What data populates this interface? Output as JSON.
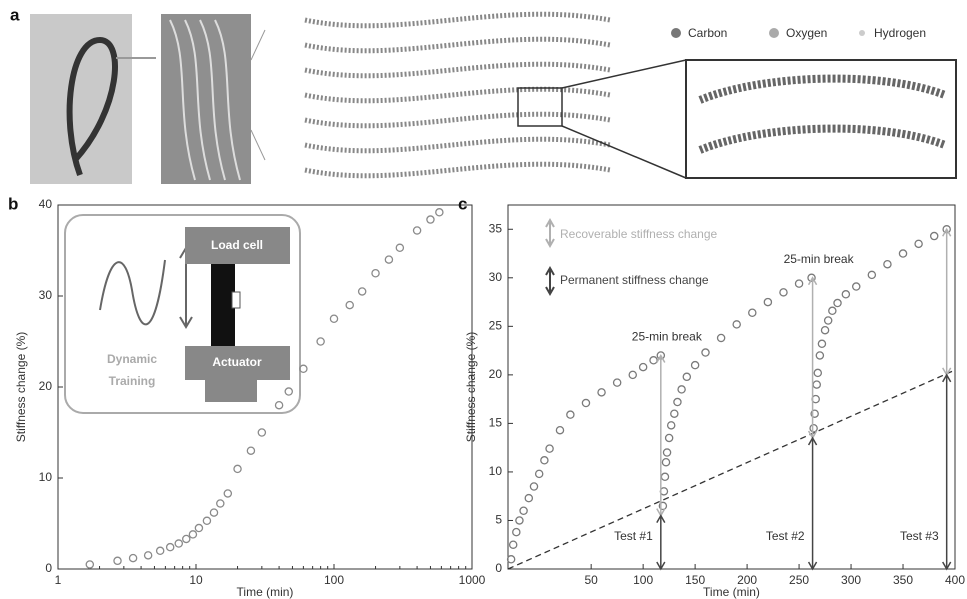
{
  "panel_a": {
    "label": "a",
    "legend": [
      "Carbon",
      "Oxygen",
      "Hydrogen"
    ]
  },
  "chart_data": [
    {
      "type": "scatter",
      "panel_label": "b",
      "x_label": "Time (min)",
      "y_label": "Stiffness change (%)",
      "x_scale": "log",
      "xlim": [
        1,
        1000
      ],
      "xticks": [
        1,
        10,
        100,
        1000
      ],
      "ylim": [
        0,
        40
      ],
      "yticks": [
        0,
        10,
        20,
        30,
        40
      ],
      "color": "#8a8a8a",
      "x": [
        1.7,
        2.7,
        3.5,
        4.5,
        5.5,
        6.5,
        7.5,
        8.5,
        9.5,
        10.5,
        12,
        13.5,
        15,
        17,
        20,
        25,
        30,
        40,
        47,
        60,
        80,
        100,
        130,
        160,
        200,
        250,
        300,
        400,
        500,
        580
      ],
      "values": [
        0.5,
        0.9,
        1.2,
        1.5,
        2.0,
        2.4,
        2.8,
        3.3,
        3.8,
        4.5,
        5.3,
        6.2,
        7.2,
        8.3,
        11,
        13,
        15,
        18,
        19.5,
        22,
        25,
        27.5,
        29,
        30.5,
        32.5,
        34,
        35.3,
        37.2,
        38.4,
        39.2
      ],
      "inset": {
        "top": "Load cell",
        "bottom": "Actuator",
        "caption": [
          "Dynamic",
          "Training"
        ]
      }
    },
    {
      "type": "scatter",
      "panel_label": "c",
      "x_label": "Time (min)",
      "y_label": "Stiffness change (%)",
      "xlim": [
        -30,
        400
      ],
      "xticks": [
        50,
        100,
        150,
        200,
        250,
        300,
        350,
        400
      ],
      "ylim": [
        0,
        37.5
      ],
      "yticks": [
        0,
        5,
        10,
        15,
        20,
        25,
        30,
        35
      ],
      "series": [
        {
          "color": "#7a7a7a",
          "x": [
            -27,
            -25,
            -22,
            -19,
            -15,
            -10,
            -5,
            0,
            5,
            10,
            20,
            30,
            45,
            60,
            75,
            90,
            100,
            110,
            117
          ],
          "values": [
            1,
            2.5,
            3.8,
            5,
            6,
            7.3,
            8.5,
            9.8,
            11.2,
            12.4,
            14.3,
            15.9,
            17.1,
            18.2,
            19.2,
            20,
            20.8,
            21.5,
            22
          ]
        },
        {
          "color": "#7a7a7a",
          "x": [
            119,
            120,
            121,
            122,
            123,
            125,
            127,
            130,
            133,
            137,
            142,
            150,
            160,
            175,
            190,
            205,
            220,
            235,
            250,
            262
          ],
          "values": [
            6.5,
            8,
            9.5,
            11,
            12,
            13.5,
            14.8,
            16,
            17.2,
            18.5,
            19.8,
            21,
            22.3,
            23.8,
            25.2,
            26.4,
            27.5,
            28.5,
            29.4,
            30
          ]
        },
        {
          "color": "#7a7a7a",
          "x": [
            264,
            265,
            266,
            267,
            268,
            270,
            272,
            275,
            278,
            282,
            287,
            295,
            305,
            320,
            335,
            350,
            365,
            380,
            392
          ],
          "values": [
            14.5,
            16,
            17.5,
            19,
            20.2,
            22,
            23.2,
            24.6,
            25.6,
            26.6,
            27.4,
            28.3,
            29.1,
            30.3,
            31.4,
            32.5,
            33.5,
            34.3,
            35
          ]
        }
      ],
      "arrows": [
        {
          "x": 117,
          "permanent": 5.5,
          "total": 22,
          "label": "Test #1"
        },
        {
          "x": 263,
          "permanent": 13.5,
          "total": 30,
          "label": "Test #2"
        },
        {
          "x": 392,
          "permanent": 20,
          "total": 35,
          "label": "Test #3"
        }
      ],
      "break_labels": [
        "25-min break",
        "25-min break"
      ],
      "trend": {
        "x": [
          -30,
          400
        ],
        "values": [
          0,
          20.5
        ]
      },
      "legend": {
        "recoverable": "Recoverable stiffness change",
        "permanent": "Permanent stiffness change",
        "recoverable_color": "#b0b0b0",
        "permanent_color": "#444444"
      }
    }
  ]
}
